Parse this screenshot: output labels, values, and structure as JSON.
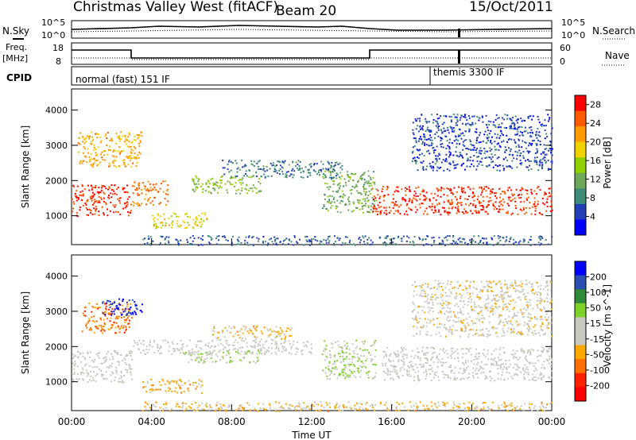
{
  "header": {
    "station": "Christmas Valley West (fitACF)",
    "beam": "Beam 20",
    "date": "15/Oct/2011"
  },
  "summary_panels": {
    "nsky": {
      "label": "N.Sky",
      "ticks": [
        "10^5",
        "10^0"
      ]
    },
    "nsearch": {
      "label": "N.Search",
      "ticks": [
        "10^5",
        "10^0"
      ]
    },
    "freq": {
      "label": "Freq.",
      "unit": "[MHz]",
      "ticks": [
        "18",
        "8"
      ]
    },
    "nave": {
      "label": "Nave",
      "ticks": [
        "60",
        "0"
      ]
    },
    "cpid": {
      "label": "CPID",
      "modes": [
        {
          "name": "normal (fast) 151 IF",
          "start_hour": 0,
          "end_hour": 17.7
        },
        {
          "name": "themis 3300 IF",
          "start_hour": 17.7,
          "end_hour": 24
        }
      ]
    }
  },
  "x_axis": {
    "label": "Time UT",
    "ticks": [
      "00:00",
      "04:00",
      "08:00",
      "12:00",
      "16:00",
      "20:00",
      "00:00"
    ]
  },
  "colors": {
    "power": [
      "#0000ff",
      "#233fb8",
      "#3c8c78",
      "#6ea85a",
      "#93d000",
      "#f0d200",
      "#ff9a00",
      "#ff5a00",
      "#ff0000"
    ],
    "velocity": [
      "#0000ff",
      "#2a4fb0",
      "#2f8a3a",
      "#7fd22a",
      "#c8c8c0",
      "#c8c8c0",
      "#ffa800",
      "#ff7000",
      "#ff2000",
      "#ff0000"
    ]
  },
  "chart_data": [
    {
      "type": "heatmap",
      "title": "",
      "xlabel": "Time UT",
      "ylabel": "Slant Range [km]",
      "x_range_hours": [
        0,
        24
      ],
      "ylim": [
        180,
        4600
      ],
      "yticks": [
        "1000",
        "2000",
        "3000",
        "4000"
      ],
      "colorbar": {
        "label": "Power [dB]",
        "ticks": [
          "4",
          "8",
          "12",
          "16",
          "20",
          "24",
          "28"
        ],
        "range": [
          0,
          30
        ]
      },
      "regions": [
        {
          "name": "early main echo band",
          "start_hour": 0.0,
          "end_hour": 3.0,
          "range_km": [
            1000,
            1900
          ],
          "value_db": 27
        },
        {
          "name": "early upper echoes",
          "start_hour": 0.3,
          "end_hour": 3.5,
          "range_km": [
            2400,
            3400
          ],
          "value_db": 21
        },
        {
          "name": "post-3UT band",
          "start_hour": 3.0,
          "end_hour": 4.8,
          "range_km": [
            1300,
            2000
          ],
          "value_db": 24
        },
        {
          "name": "lower striations",
          "start_hour": 4.0,
          "end_hour": 6.8,
          "range_km": [
            650,
            1100
          ],
          "value_db": 18
        },
        {
          "name": "descending echo",
          "start_hour": 6.0,
          "end_hour": 9.5,
          "range_km": [
            1650,
            2150
          ],
          "value_db": 14
        },
        {
          "name": "diffuse upper band",
          "start_hour": 7.5,
          "end_hour": 13.5,
          "range_km": [
            2100,
            2600
          ],
          "value_db": 8
        },
        {
          "name": "pre-midday descent",
          "start_hour": 12.5,
          "end_hour": 15.2,
          "range_km": [
            1100,
            2300
          ],
          "value_db": 12
        },
        {
          "name": "late main echo band",
          "start_hour": 15.0,
          "end_hour": 24.0,
          "range_km": [
            1050,
            1850
          ],
          "value_db": 27
        },
        {
          "name": "late upper diffuse",
          "start_hour": 17.0,
          "end_hour": 24.0,
          "range_km": [
            2300,
            3900
          ],
          "value_db": 5
        },
        {
          "name": "near-range ground clutter",
          "start_hour": 3.5,
          "end_hour": 24.0,
          "range_km": [
            180,
            450
          ],
          "value_db": 6
        }
      ]
    },
    {
      "type": "heatmap",
      "title": "",
      "xlabel": "Time UT",
      "ylabel": "Slant Range [km]",
      "x_range_hours": [
        0,
        24
      ],
      "ylim": [
        180,
        4600
      ],
      "yticks": [
        "1000",
        "2000",
        "3000",
        "4000"
      ],
      "colorbar": {
        "label": "Velocity [m s^-1]",
        "ticks": [
          "200",
          "100",
          "50",
          "15",
          "-15",
          "-50",
          "-100",
          "-200"
        ],
        "range": [
          -250,
          250
        ]
      },
      "regions": [
        {
          "name": "early ground scatter band",
          "start_hour": 0.0,
          "end_hour": 3.0,
          "range_km": [
            1000,
            1900
          ],
          "value_ms": 0
        },
        {
          "name": "early upper mixed",
          "start_hour": 0.5,
          "end_hour": 3.0,
          "range_km": [
            2400,
            3300
          ],
          "value_ms": -120
        },
        {
          "name": "blue positive patch",
          "start_hour": 1.5,
          "end_hour": 3.5,
          "range_km": [
            2900,
            3400
          ],
          "value_ms": 200
        },
        {
          "name": "mid grey band",
          "start_hour": 3.0,
          "end_hour": 12.0,
          "range_km": [
            1800,
            2200
          ],
          "value_ms": 0
        },
        {
          "name": "orange lower echoes",
          "start_hour": 3.5,
          "end_hour": 6.5,
          "range_km": [
            700,
            1100
          ],
          "value_ms": -70
        },
        {
          "name": "green descending echo",
          "start_hour": 5.5,
          "end_hour": 9.5,
          "range_km": [
            1550,
            1900
          ],
          "value_ms": 40
        },
        {
          "name": "morning upper mixed",
          "start_hour": 7.0,
          "end_hour": 11.0,
          "range_km": [
            2200,
            2600
          ],
          "value_ms": -60
        },
        {
          "name": "green pre-midday descent",
          "start_hour": 12.5,
          "end_hour": 15.2,
          "range_km": [
            1100,
            2200
          ],
          "value_ms": 40
        },
        {
          "name": "late ground scatter band",
          "start_hour": 15.5,
          "end_hour": 24.0,
          "range_km": [
            1050,
            2000
          ],
          "value_ms": 0
        },
        {
          "name": "late upper diffuse",
          "start_hour": 17.0,
          "end_hour": 24.0,
          "range_km": [
            2300,
            3900
          ],
          "value_ms": -30
        },
        {
          "name": "near-range ionospheric",
          "start_hour": 3.5,
          "end_hour": 24.0,
          "range_km": [
            180,
            450
          ],
          "value_ms": -60
        }
      ]
    }
  ]
}
